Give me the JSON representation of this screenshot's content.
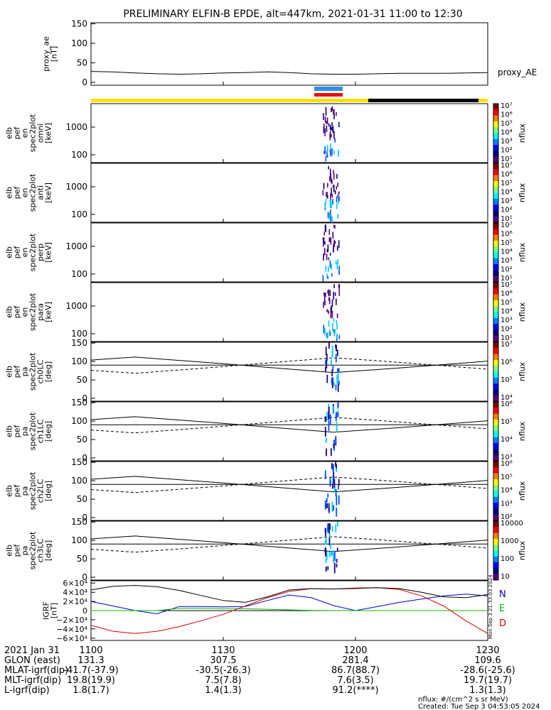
{
  "title": "PRELIMINARY ELFIN-B EPDE, alt=447km, 2021-01-31 11:00 to 12:30",
  "colors": {
    "bar_yellow": "#FFE000",
    "bar_black": "#000000",
    "bar_blue": "#2F8FE8",
    "bar_red": "#E81010",
    "n_color": "#0000CC",
    "e_color": "#00BB00",
    "d_color": "#DD0000"
  },
  "panels": [
    {
      "id": "proxy_ae",
      "ylabel": [
        "proxy_ae",
        "[nT]"
      ],
      "ticks": [
        "150",
        "100",
        "50",
        "0"
      ],
      "right_label": "proxy_AE",
      "type": "line"
    },
    {
      "id": "en_omni",
      "ylabel": [
        "elb",
        "pef",
        "en",
        "spec2plot",
        "omni",
        "[keV]"
      ],
      "ticks": [
        "1000",
        "100"
      ],
      "type": "spectrogram",
      "cb_ticks": [
        "10⁷",
        "10⁶",
        "10⁵",
        "10⁴",
        "10³",
        "10²",
        "10¹"
      ],
      "cb_label": "nflux"
    },
    {
      "id": "en_anti",
      "ylabel": [
        "elb",
        "pef",
        "en",
        "spec2plot",
        "anti",
        "[keV]"
      ],
      "ticks": [
        "1000",
        "100"
      ],
      "type": "spectrogram",
      "cb_ticks": [
        "10⁷",
        "10⁶",
        "10⁵",
        "10⁴",
        "10³",
        "10²",
        "10¹"
      ],
      "cb_label": "nflux"
    },
    {
      "id": "en_perp",
      "ylabel": [
        "elb",
        "pef",
        "en",
        "spec2plot",
        "perp",
        "[keV]"
      ],
      "ticks": [
        "1000",
        "100"
      ],
      "type": "spectrogram",
      "cb_ticks": [
        "10⁷",
        "10⁶",
        "10⁵",
        "10⁴",
        "10³",
        "10²",
        "10¹"
      ],
      "cb_label": "nflux"
    },
    {
      "id": "en_para",
      "ylabel": [
        "elb",
        "pef",
        "en",
        "spec2plot",
        "para",
        "[keV]"
      ],
      "ticks": [
        "1000",
        "100"
      ],
      "type": "spectrogram",
      "cb_ticks": [
        "10⁷",
        "10⁶",
        "10⁵",
        "10⁴",
        "10³",
        "10²",
        "10¹"
      ],
      "cb_label": "nflux"
    },
    {
      "id": "pa_ch0",
      "ylabel": [
        "elb",
        "pef",
        "pa",
        "spec2plot",
        "ch0LC",
        "[deg]"
      ],
      "ticks": [
        "150",
        "100",
        "50",
        "0"
      ],
      "type": "pitch",
      "cb_ticks": [
        "10⁷",
        "10⁶",
        "10⁵",
        "10⁴"
      ],
      "cb_label": "nflux"
    },
    {
      "id": "pa_ch1",
      "ylabel": [
        "elb",
        "pef",
        "pa",
        "spec2plot",
        "ch1LC",
        "[deg]"
      ],
      "ticks": [
        "150",
        "100",
        "50",
        "0"
      ],
      "type": "pitch",
      "cb_ticks": [
        "10⁶",
        "10⁵",
        "10⁴",
        "10³"
      ],
      "cb_label": "nflux"
    },
    {
      "id": "pa_ch2",
      "ylabel": [
        "elb",
        "pef",
        "pa",
        "spec2plot",
        "ch2LC",
        "[deg]"
      ],
      "ticks": [
        "150",
        "100",
        "50",
        "0"
      ],
      "type": "pitch",
      "cb_ticks": [
        "10⁶",
        "10⁵",
        "10⁴",
        "10³",
        "10²"
      ],
      "cb_label": "nflux"
    },
    {
      "id": "pa_ch3",
      "ylabel": [
        "elb",
        "pef",
        "pa",
        "spec2plot",
        "ch3LC",
        "[deg]"
      ],
      "ticks": [
        "150",
        "100",
        "50",
        "0"
      ],
      "type": "pitch",
      "cb_ticks": [
        "10000",
        "1000",
        "100",
        "10"
      ],
      "cb_label": "nflux"
    },
    {
      "id": "igrf",
      "ylabel": [
        "IGRF",
        "[nT]"
      ],
      "ticks": [
        "6×10⁴",
        "4×10⁴",
        "2×10⁴",
        "0",
        "−2×10⁴",
        "−4×10⁴",
        "−6×10⁴"
      ],
      "type": "igrf",
      "legend": [
        "N",
        "E",
        "D"
      ],
      "side_text": "Mon Sep  3 21:33:03 2024"
    }
  ],
  "xaxis": {
    "row_labels": [
      "2021 Jan 31",
      "GLON (east)",
      "MLAT-igrf(dip)",
      "MLT-igrf(dip)",
      "L-igrf(dip)"
    ],
    "columns": [
      {
        "t": "1100",
        "glon": "131.3",
        "mlat": "-41.7(-37.9)",
        "mlt": "19.8(19.9)",
        "l": "1.8(1.7)"
      },
      {
        "t": "1130",
        "glon": "307.5",
        "mlat": "-30.5(-26.3)",
        "mlt": "7.5(7.8)",
        "l": "1.4(1.3)"
      },
      {
        "t": "1200",
        "glon": "281.4",
        "mlat": "86.7(88.7)",
        "mlt": "7.6(3.5)",
        "l": "91.2(****)"
      },
      {
        "t": "1230",
        "glon": "109.6",
        "mlat": "-28.6(-25.6)",
        "mlt": "19.7(19.7)",
        "l": "1.3(1.3)"
      }
    ]
  },
  "footer": {
    "units": "nflux: #/(cm^2 s sr MeV)",
    "created": "Created: Tue Sep  3 04:53:05 2024"
  },
  "chart_data": {
    "type": "line",
    "title": "PRELIMINARY ELFIN-B EPDE, alt=447km, 2021-01-31 11:00 to 12:30",
    "x_range": [
      "11:00",
      "12:30"
    ],
    "proxy_ae": {
      "ylabel": "proxy_ae [nT]",
      "ylim": [
        0,
        160
      ],
      "x_min": [
        0,
        5,
        10,
        15,
        20,
        25,
        30,
        35,
        40,
        45,
        50,
        55,
        60,
        65,
        70,
        75,
        80,
        85,
        90
      ],
      "values": [
        28,
        27,
        24,
        22,
        21,
        22,
        24,
        25,
        27,
        25,
        22,
        21,
        21,
        22,
        23,
        23,
        23,
        24,
        25
      ]
    },
    "loss_cone_deg": {
      "x_min": [
        0,
        10,
        20,
        30,
        40,
        55,
        65,
        75,
        90
      ],
      "values": [
        104,
        112,
        103,
        94,
        84,
        70,
        78,
        87,
        101
      ]
    },
    "igrf": {
      "ylim": [
        -65000,
        65000
      ],
      "x_min": [
        0,
        5,
        10,
        15,
        20,
        25,
        30,
        35,
        40,
        45,
        50,
        55,
        60,
        65,
        70,
        75,
        80,
        85,
        90
      ],
      "series": [
        {
          "name": "N",
          "values": [
            20000,
            10000,
            0,
            -7000,
            9000,
            9000,
            8000,
            9000,
            22000,
            34000,
            28000,
            11000,
            0,
            9000,
            18000,
            25000,
            32000,
            36000,
            32000
          ]
        },
        {
          "name": "E",
          "values": [
            0,
            0,
            0,
            0,
            5000,
            5000,
            4500,
            4000,
            3000,
            1500,
            500,
            0,
            0,
            0,
            0,
            0,
            0,
            0,
            0
          ]
        },
        {
          "name": "D",
          "values": [
            -32000,
            -45000,
            -50000,
            -45000,
            -35000,
            -22000,
            -8000,
            10000,
            28000,
            42000,
            48000,
            47000,
            48000,
            50000,
            46000,
            32000,
            10000,
            -22000,
            -50000
          ]
        },
        {
          "name": "",
          "values": [
            45000,
            53000,
            55000,
            52000,
            44000,
            33000,
            22000,
            18000,
            30000,
            45000,
            48000,
            47000,
            49000,
            50000,
            48000,
            40000,
            30000,
            28000,
            35000
          ]
        }
      ]
    }
  }
}
